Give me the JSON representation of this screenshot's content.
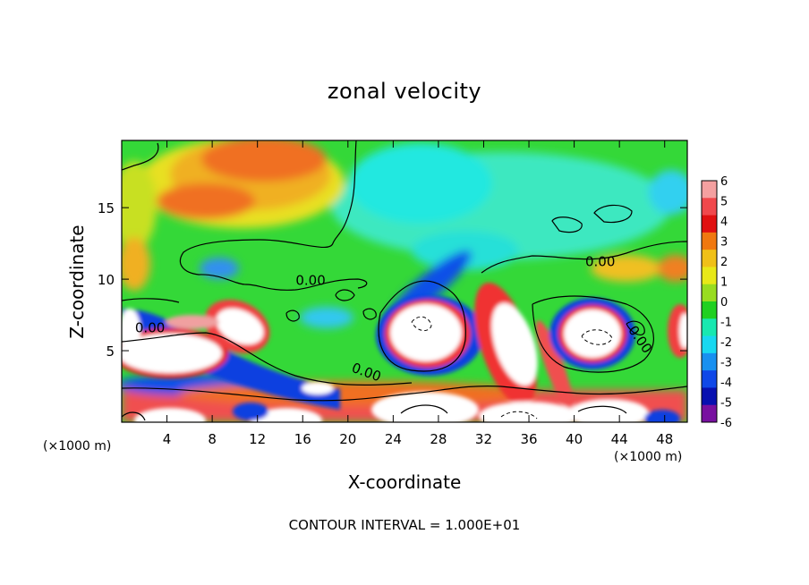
{
  "chart_data": {
    "type": "heatmap",
    "title": "zonal velocity",
    "xlabel": "X-coordinate",
    "ylabel": "Z-coordinate",
    "x_unit_note_left": "(×1000 m)",
    "x_unit_note_right": "(×1000 m)",
    "xlim": [
      0,
      50
    ],
    "ylim": [
      0,
      19.7
    ],
    "xticks": [
      4,
      8,
      12,
      16,
      20,
      24,
      28,
      32,
      36,
      40,
      44,
      48
    ],
    "yticks": [
      5,
      10,
      15
    ],
    "colorbar": {
      "ticks": [
        6,
        5,
        4,
        3,
        2,
        1,
        0,
        -1,
        -2,
        -3,
        -4,
        -5,
        -6
      ],
      "colors": [
        "#f4a0a0",
        "#f0484c",
        "#e01010",
        "#f07810",
        "#f0c018",
        "#e8e818",
        "#98dc20",
        "#20d020",
        "#18e8b0",
        "#18d8f0",
        "#1890f0",
        "#1048e8",
        "#0810b0",
        "#7810a0"
      ]
    },
    "contour_labels": [
      "0.00",
      "0.00",
      "0.00",
      "0.00",
      "0.00"
    ],
    "footer": "CONTOUR INTERVAL = 1.000E+01"
  }
}
